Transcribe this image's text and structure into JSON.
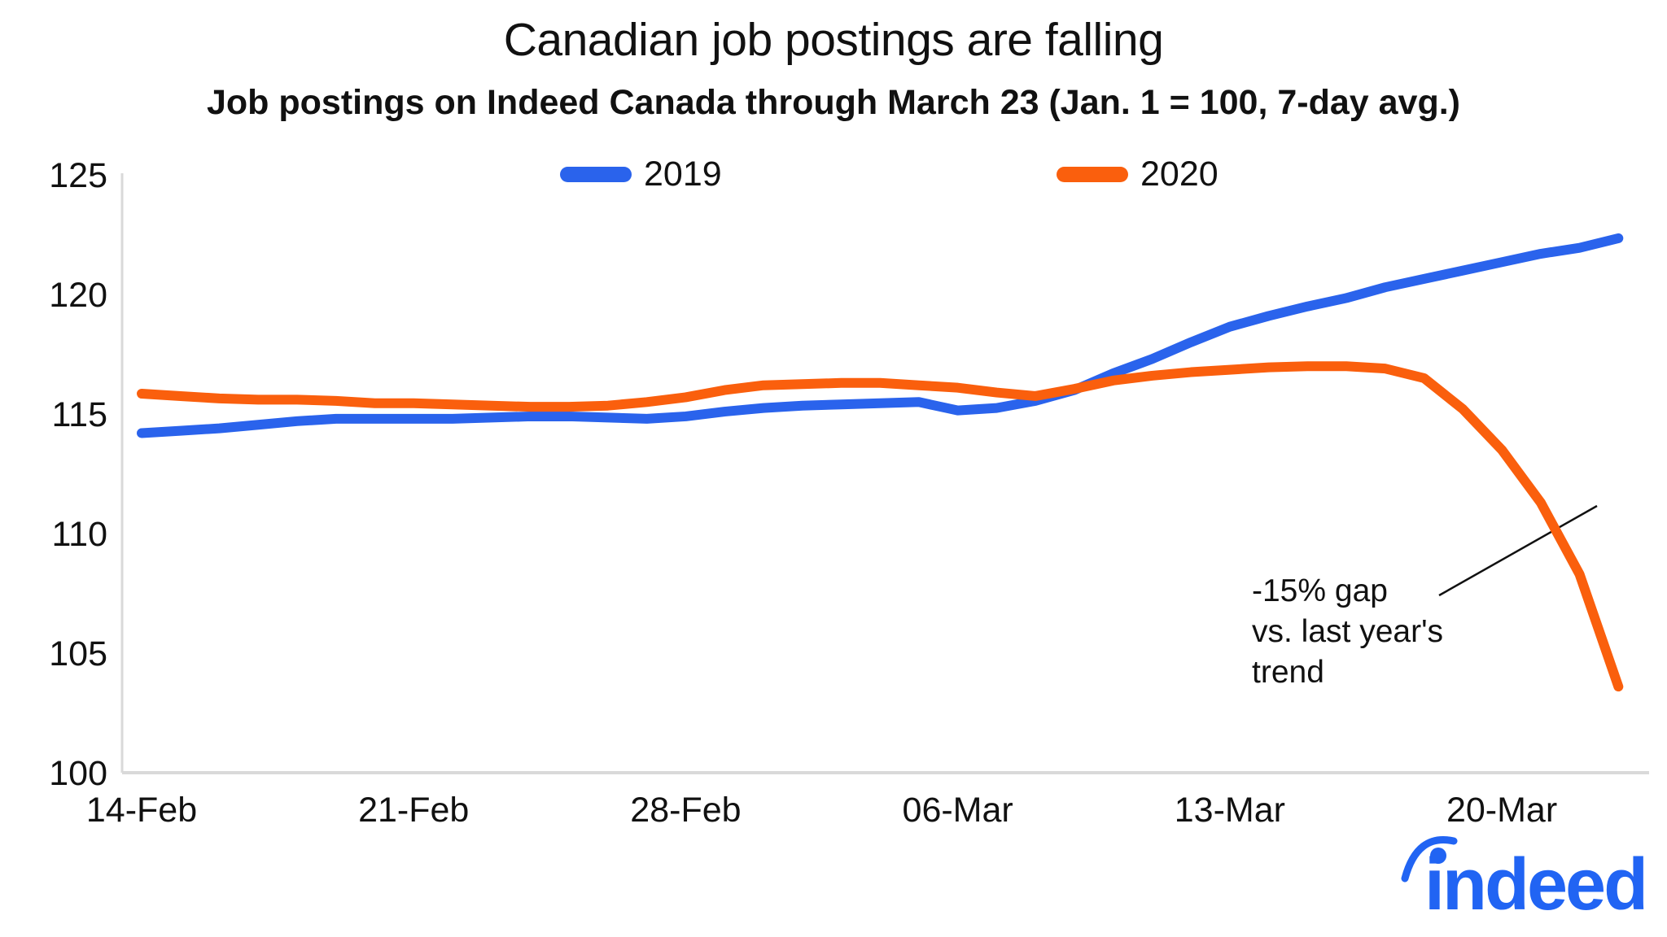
{
  "header": {
    "title": "Canadian job postings are falling",
    "subtitle": "Job postings on Indeed Canada through March 23 (Jan. 1 = 100, 7-day avg.)"
  },
  "chart_data": {
    "type": "line",
    "x": [
      "14-Feb",
      "15-Feb",
      "16-Feb",
      "17-Feb",
      "18-Feb",
      "19-Feb",
      "20-Feb",
      "21-Feb",
      "22-Feb",
      "23-Feb",
      "24-Feb",
      "25-Feb",
      "26-Feb",
      "27-Feb",
      "28-Feb",
      "29-Feb",
      "01-Mar",
      "02-Mar",
      "03-Mar",
      "04-Mar",
      "05-Mar",
      "06-Mar",
      "07-Mar",
      "08-Mar",
      "09-Mar",
      "10-Mar",
      "11-Mar",
      "12-Mar",
      "13-Mar",
      "14-Mar",
      "15-Mar",
      "16-Mar",
      "17-Mar",
      "18-Mar",
      "19-Mar",
      "20-Mar",
      "21-Mar",
      "22-Mar",
      "23-Mar"
    ],
    "series": [
      {
        "name": "2019",
        "color": "#2A63EC",
        "values": [
          114.2,
          114.3,
          114.4,
          114.55,
          114.7,
          114.8,
          114.8,
          114.8,
          114.8,
          114.85,
          114.9,
          114.9,
          114.85,
          114.8,
          114.9,
          115.1,
          115.25,
          115.35,
          115.4,
          115.45,
          115.5,
          115.15,
          115.25,
          115.55,
          116.0,
          116.7,
          117.3,
          118.0,
          118.65,
          119.1,
          119.5,
          119.85,
          120.3,
          120.65,
          121.0,
          121.35,
          121.7,
          121.95,
          122.35
        ]
      },
      {
        "name": "2020",
        "color": "#FA5F0D",
        "values": [
          115.85,
          115.75,
          115.65,
          115.6,
          115.6,
          115.55,
          115.45,
          115.45,
          115.4,
          115.35,
          115.3,
          115.3,
          115.35,
          115.5,
          115.7,
          116.0,
          116.2,
          116.25,
          116.3,
          116.3,
          116.2,
          116.1,
          115.9,
          115.75,
          116.05,
          116.4,
          116.6,
          116.75,
          116.85,
          116.95,
          117.0,
          117.0,
          116.9,
          116.5,
          115.2,
          113.5,
          111.3,
          108.3,
          103.6
        ]
      }
    ],
    "ylim": [
      100,
      125
    ],
    "yticks": [
      100,
      105,
      110,
      115,
      120,
      125
    ],
    "xticks": [
      {
        "label": "14-Feb",
        "day": 0
      },
      {
        "label": "21-Feb",
        "day": 7
      },
      {
        "label": "28-Feb",
        "day": 14
      },
      {
        "label": "06-Mar",
        "day": 21
      },
      {
        "label": "13-Mar",
        "day": 28
      },
      {
        "label": "20-Mar",
        "day": 35
      }
    ],
    "grid": false,
    "legend_position": "top-center",
    "annotation": {
      "lines": [
        "-15% gap",
        "vs. last year's",
        "trend"
      ]
    }
  },
  "logo": {
    "text": "indeed",
    "color": "#2164F3"
  },
  "colors": {
    "axis": "#D9D9D9",
    "text": "#111111",
    "annotation_line": "#111111"
  }
}
